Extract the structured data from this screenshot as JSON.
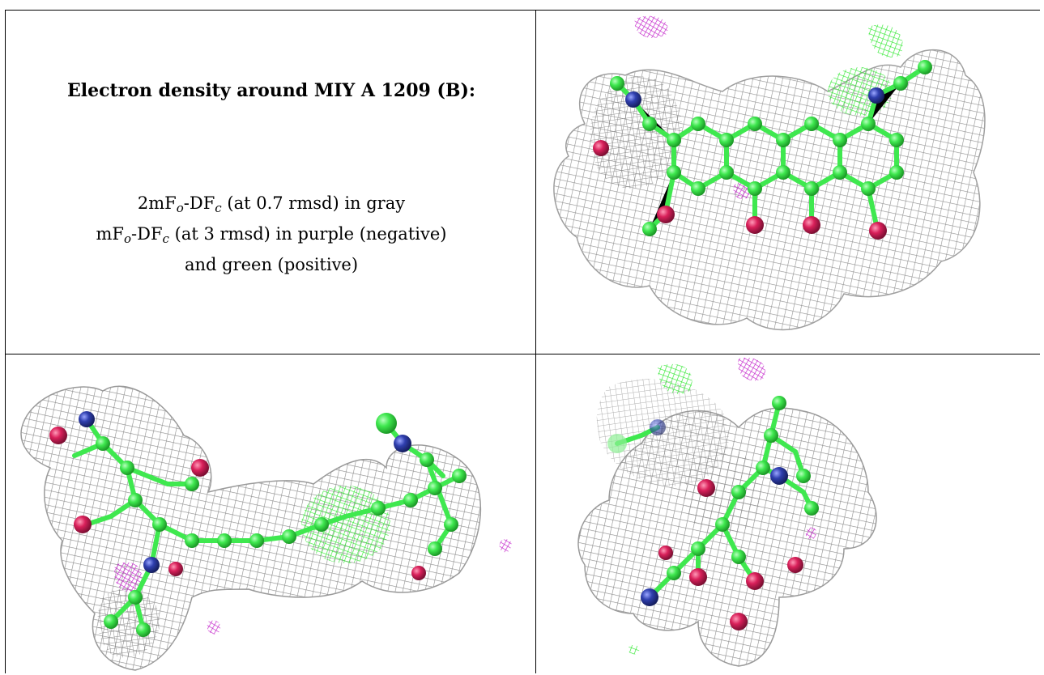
{
  "caption": {
    "title": "Electron density around MIY A 1209 (B):",
    "line1": {
      "a": "2mF",
      "a_sub": "o",
      "b": "-DF",
      "b_sub": "c",
      "rest": " (at 0.7 rmsd) in gray"
    },
    "line2": {
      "a": "mF",
      "a_sub": "o",
      "b": "-DF",
      "b_sub": "c",
      "rest": " (at 3 rmsd) in purple (negative)"
    },
    "line3": "and green (positive)"
  },
  "colors": {
    "mesh_gray": "#8f8f8f",
    "carbon_green": "#39e84a",
    "oxygen_red": "#d9205a",
    "nitrogen_blue": "#2f3fae",
    "negative_purple": "#c21fc9",
    "positive_green": "#3cf03c"
  },
  "views": [
    {
      "id": "view-top-right",
      "description_icon": "molecule-density-render"
    },
    {
      "id": "view-bottom-left",
      "description_icon": "molecule-density-render"
    },
    {
      "id": "view-bottom-right",
      "description_icon": "molecule-density-render"
    }
  ]
}
